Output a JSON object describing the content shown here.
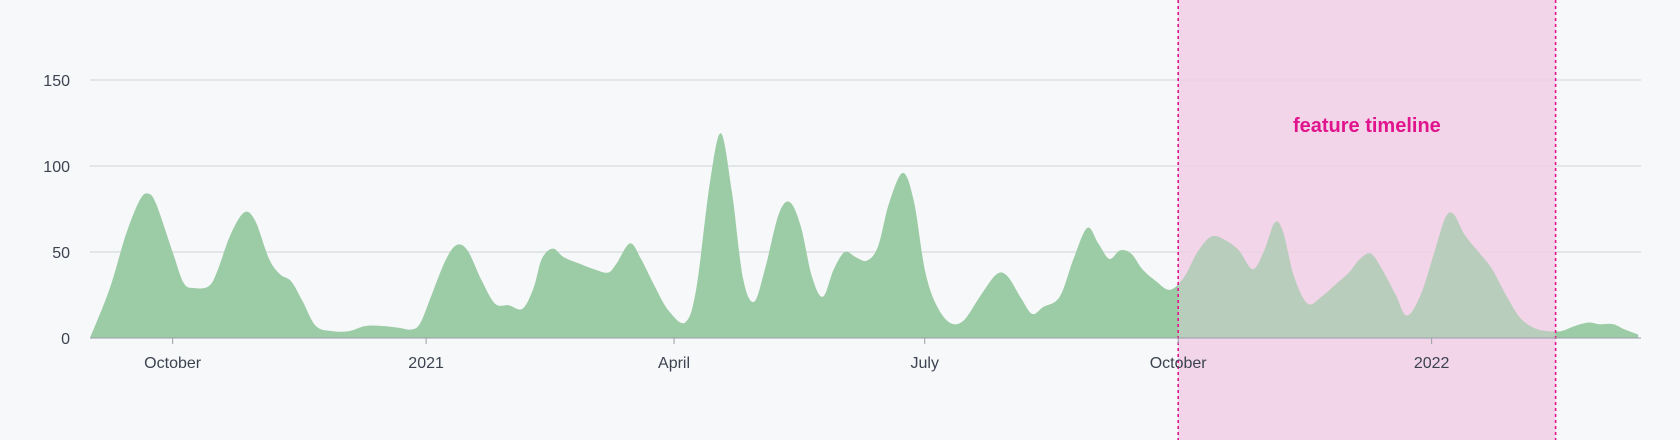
{
  "chart_data": {
    "type": "area",
    "title": "",
    "xlabel": "",
    "ylabel": "",
    "ylim": [
      0,
      150
    ],
    "yticks": [
      0,
      50,
      100,
      150
    ],
    "grid": true,
    "colors": {
      "area": "#9ccca6",
      "band": "#f1cfe6",
      "band_line": "#e0148c",
      "label": "#e0148c",
      "grid": "#cfd3d8",
      "axis": "#9aa0a6"
    },
    "x_range": [
      "2020-09-01",
      "2022-03-18"
    ],
    "x_ticks": [
      {
        "date": "2020-10-01",
        "label": "October"
      },
      {
        "date": "2021-01-01",
        "label": "2021"
      },
      {
        "date": "2021-04-01",
        "label": "April"
      },
      {
        "date": "2021-07-01",
        "label": "July"
      },
      {
        "date": "2021-10-01",
        "label": "October"
      },
      {
        "date": "2022-01-01",
        "label": "2022"
      }
    ],
    "series": [
      {
        "points": [
          [
            "2020-09-01",
            0
          ],
          [
            "2020-09-08",
            28
          ],
          [
            "2020-09-14",
            60
          ],
          [
            "2020-09-19",
            80
          ],
          [
            "2020-09-22",
            84
          ],
          [
            "2020-09-25",
            78
          ],
          [
            "2020-10-01",
            50
          ],
          [
            "2020-10-05",
            32
          ],
          [
            "2020-10-09",
            29
          ],
          [
            "2020-10-14",
            30
          ],
          [
            "2020-10-17",
            38
          ],
          [
            "2020-10-22",
            60
          ],
          [
            "2020-10-27",
            73
          ],
          [
            "2020-10-31",
            68
          ],
          [
            "2020-11-05",
            46
          ],
          [
            "2020-11-09",
            37
          ],
          [
            "2020-11-13",
            33
          ],
          [
            "2020-11-17",
            22
          ],
          [
            "2020-11-22",
            7
          ],
          [
            "2020-11-28",
            4
          ],
          [
            "2020-12-04",
            4
          ],
          [
            "2020-12-10",
            7
          ],
          [
            "2020-12-16",
            7
          ],
          [
            "2020-12-22",
            6
          ],
          [
            "2020-12-27",
            5
          ],
          [
            "2020-12-30",
            9
          ],
          [
            "2021-01-03",
            25
          ],
          [
            "2021-01-08",
            45
          ],
          [
            "2021-01-12",
            54
          ],
          [
            "2021-01-16",
            51
          ],
          [
            "2021-01-21",
            34
          ],
          [
            "2021-01-26",
            20
          ],
          [
            "2021-01-31",
            19
          ],
          [
            "2021-02-05",
            17
          ],
          [
            "2021-02-09",
            29
          ],
          [
            "2021-02-12",
            46
          ],
          [
            "2021-02-16",
            52
          ],
          [
            "2021-02-20",
            47
          ],
          [
            "2021-02-26",
            43
          ],
          [
            "2021-03-03",
            40
          ],
          [
            "2021-03-08",
            38
          ],
          [
            "2021-03-11",
            43
          ],
          [
            "2021-03-16",
            55
          ],
          [
            "2021-03-20",
            46
          ],
          [
            "2021-03-25",
            30
          ],
          [
            "2021-03-30",
            16
          ],
          [
            "2021-04-05",
            9
          ],
          [
            "2021-04-09",
            28
          ],
          [
            "2021-04-14",
            90
          ],
          [
            "2021-04-18",
            119
          ],
          [
            "2021-04-22",
            85
          ],
          [
            "2021-04-26",
            35
          ],
          [
            "2021-04-30",
            21
          ],
          [
            "2021-05-04",
            40
          ],
          [
            "2021-05-09",
            72
          ],
          [
            "2021-05-13",
            79
          ],
          [
            "2021-05-17",
            65
          ],
          [
            "2021-05-21",
            36
          ],
          [
            "2021-05-25",
            24
          ],
          [
            "2021-05-29",
            40
          ],
          [
            "2021-06-02",
            50
          ],
          [
            "2021-06-06",
            47
          ],
          [
            "2021-06-10",
            45
          ],
          [
            "2021-06-14",
            53
          ],
          [
            "2021-06-18",
            78
          ],
          [
            "2021-06-23",
            96
          ],
          [
            "2021-06-27",
            80
          ],
          [
            "2021-07-01",
            40
          ],
          [
            "2021-07-05",
            20
          ],
          [
            "2021-07-10",
            9
          ],
          [
            "2021-07-15",
            10
          ],
          [
            "2021-07-21",
            24
          ],
          [
            "2021-07-27",
            37
          ],
          [
            "2021-07-31",
            36
          ],
          [
            "2021-08-05",
            23
          ],
          [
            "2021-08-09",
            14
          ],
          [
            "2021-08-13",
            18
          ],
          [
            "2021-08-19",
            24
          ],
          [
            "2021-08-24",
            46
          ],
          [
            "2021-08-29",
            64
          ],
          [
            "2021-09-02",
            55
          ],
          [
            "2021-09-06",
            46
          ],
          [
            "2021-09-10",
            51
          ],
          [
            "2021-09-14",
            49
          ],
          [
            "2021-09-18",
            40
          ],
          [
            "2021-09-23",
            33
          ],
          [
            "2021-09-28",
            28
          ],
          [
            "2021-10-03",
            35
          ],
          [
            "2021-10-08",
            50
          ],
          [
            "2021-10-13",
            59
          ],
          [
            "2021-10-18",
            57
          ],
          [
            "2021-10-23",
            51
          ],
          [
            "2021-10-28",
            40
          ],
          [
            "2021-11-01",
            50
          ],
          [
            "2021-11-05",
            67
          ],
          [
            "2021-11-08",
            62
          ],
          [
            "2021-11-12",
            36
          ],
          [
            "2021-11-17",
            20
          ],
          [
            "2021-11-22",
            24
          ],
          [
            "2021-11-27",
            31
          ],
          [
            "2021-12-02",
            38
          ],
          [
            "2021-12-06",
            46
          ],
          [
            "2021-12-10",
            49
          ],
          [
            "2021-12-14",
            40
          ],
          [
            "2021-12-19",
            25
          ],
          [
            "2021-12-23",
            13
          ],
          [
            "2021-12-28",
            25
          ],
          [
            "2022-01-02",
            50
          ],
          [
            "2022-01-06",
            70
          ],
          [
            "2022-01-09",
            72
          ],
          [
            "2022-01-13",
            60
          ],
          [
            "2022-01-18",
            50
          ],
          [
            "2022-01-23",
            40
          ],
          [
            "2022-01-28",
            25
          ],
          [
            "2022-02-02",
            12
          ],
          [
            "2022-02-07",
            6
          ],
          [
            "2022-02-12",
            4
          ],
          [
            "2022-02-17",
            4
          ],
          [
            "2022-02-22",
            7
          ],
          [
            "2022-02-27",
            9
          ],
          [
            "2022-03-03",
            8
          ],
          [
            "2022-03-08",
            8
          ],
          [
            "2022-03-12",
            5
          ],
          [
            "2022-03-17",
            2
          ]
        ]
      }
    ],
    "annotations": [
      {
        "type": "x-band",
        "start": "2021-10-01",
        "end": "2022-02-15",
        "label": "feature timeline"
      }
    ]
  }
}
